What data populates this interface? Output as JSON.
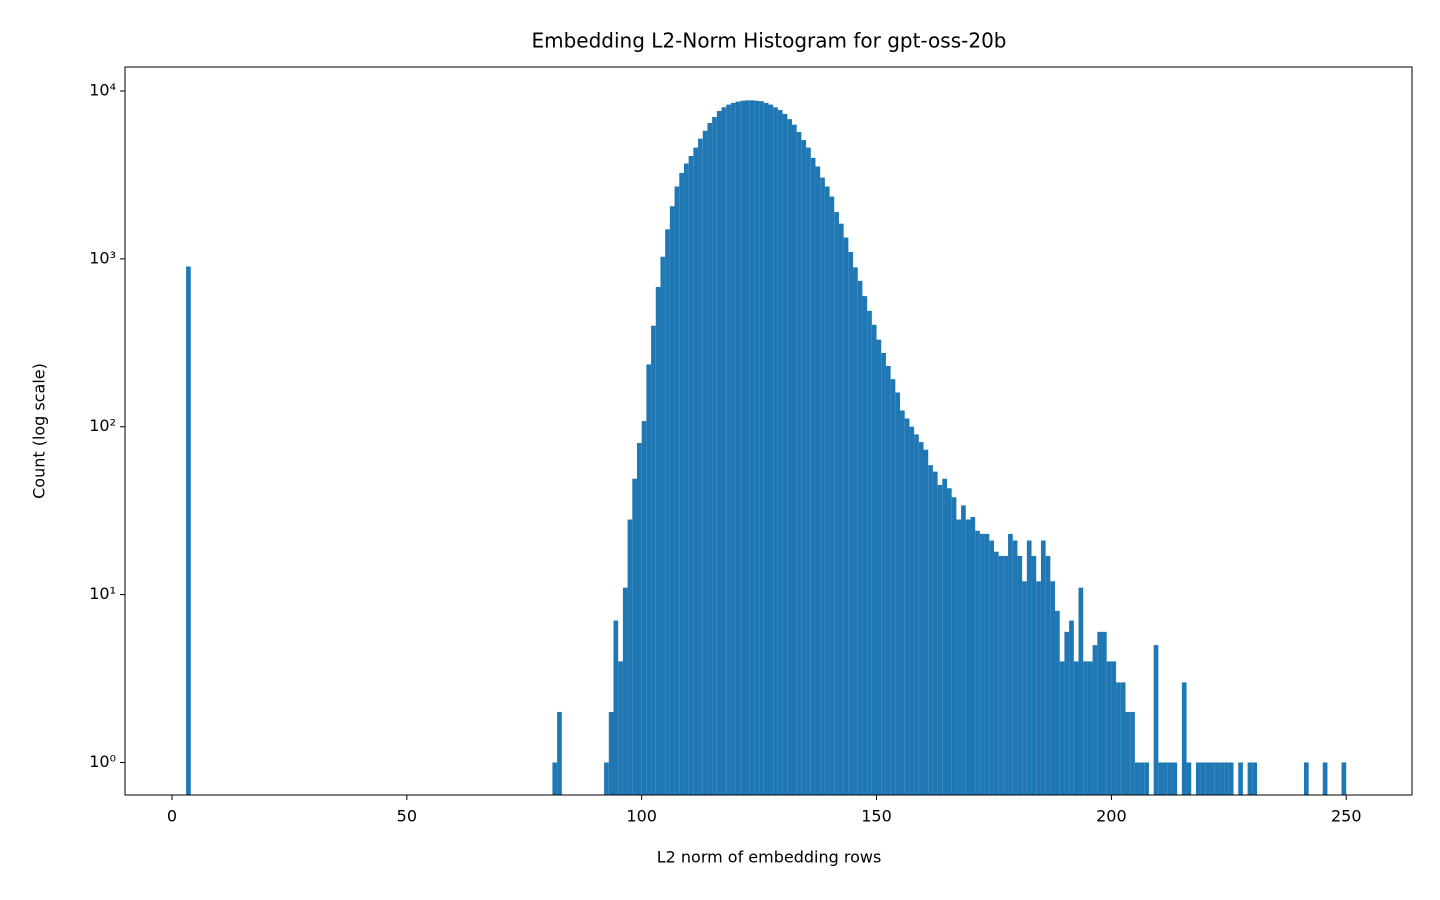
{
  "chart_data": {
    "type": "histogram",
    "title": "Embedding L2-Norm Histogram for gpt-oss-20b",
    "xlabel": "L2 norm of embedding rows",
    "ylabel": "Count (log scale)",
    "color": "#1f77b4",
    "log_y": true,
    "xlim": [
      -10,
      264
    ],
    "ylim": [
      0.64,
      13900
    ],
    "xticks": [
      0,
      50,
      100,
      150,
      200,
      250
    ],
    "yticks": [
      {
        "value": 1,
        "label": "10⁰"
      },
      {
        "value": 10,
        "label": "10¹"
      },
      {
        "value": 100,
        "label": "10²"
      },
      {
        "value": 1000,
        "label": "10³"
      },
      {
        "value": 10000,
        "label": "10⁴"
      }
    ],
    "bins": [
      3,
      4,
      5,
      6,
      7,
      8,
      9,
      10,
      11,
      12,
      13,
      14,
      15,
      16,
      17,
      18,
      19,
      20,
      21,
      22,
      23,
      24,
      25,
      26,
      27,
      28,
      29,
      30,
      31,
      32,
      33,
      34,
      35,
      36,
      37,
      38,
      39,
      40,
      41,
      42,
      43,
      44,
      45,
      46,
      47,
      48,
      49,
      50,
      51,
      52,
      53,
      54,
      55,
      56,
      57,
      58,
      59,
      60,
      61,
      62,
      63,
      64,
      65,
      66,
      67,
      68,
      69,
      70,
      71,
      72,
      73,
      74,
      75,
      76,
      77,
      78,
      79,
      80,
      81,
      82,
      83,
      84,
      85,
      86,
      87,
      88,
      89,
      90,
      91,
      92,
      93,
      94,
      95,
      96,
      97,
      98,
      99,
      100,
      101,
      102,
      103,
      104,
      105,
      106,
      107,
      108,
      109,
      110,
      111,
      112,
      113,
      114,
      115,
      116,
      117,
      118,
      119,
      120,
      121,
      122,
      123,
      124,
      125,
      126,
      127,
      128,
      129,
      130,
      131,
      132,
      133,
      134,
      135,
      136,
      137,
      138,
      139,
      140,
      141,
      142,
      143,
      144,
      145,
      146,
      147,
      148,
      149,
      150,
      151,
      152,
      153,
      154,
      155,
      156,
      157,
      158,
      159,
      160,
      161,
      162,
      163,
      164,
      165,
      166,
      167,
      168,
      169,
      170,
      171,
      172,
      173,
      174,
      175,
      176,
      177,
      178,
      179,
      180,
      181,
      182,
      183,
      184,
      185,
      186,
      187,
      188,
      189,
      190,
      191,
      192,
      193,
      194,
      195,
      196,
      197,
      198,
      199,
      200,
      201,
      202,
      203,
      204,
      205,
      206,
      207,
      208,
      209,
      210,
      211,
      212,
      213,
      214,
      215,
      216,
      217,
      218,
      219,
      220,
      221,
      222,
      223,
      224,
      225,
      226,
      227,
      228,
      229,
      230,
      231,
      232,
      233,
      234,
      235,
      236,
      237,
      238,
      239,
      240,
      241,
      242,
      243,
      244,
      245,
      246,
      247,
      248,
      249,
      250,
      251,
      252
    ],
    "counts": [
      900,
      0,
      0,
      0,
      0,
      0,
      0,
      0,
      0,
      0,
      0,
      0,
      0,
      0,
      0,
      0,
      0,
      0,
      0,
      0,
      0,
      0,
      0,
      0,
      0,
      0,
      0,
      0,
      0,
      0,
      0,
      0,
      0,
      0,
      0,
      0,
      0,
      0,
      0,
      0,
      0,
      0,
      0,
      0,
      0,
      0,
      0,
      0,
      0,
      0,
      0,
      0,
      0,
      0,
      0,
      0,
      0,
      0,
      0,
      0,
      0,
      0,
      0,
      0,
      0,
      0,
      0,
      0,
      0,
      0,
      0,
      0,
      0,
      0,
      0,
      0,
      0,
      0,
      1,
      2,
      0,
      0,
      0,
      0,
      0,
      0,
      0,
      0,
      0,
      1,
      2,
      7,
      4,
      11,
      28,
      49,
      80,
      108,
      235,
      400,
      680,
      1030,
      1500,
      2060,
      2700,
      3250,
      3700,
      4100,
      4600,
      5200,
      5800,
      6450,
      7000,
      7600,
      8000,
      8300,
      8500,
      8650,
      8750,
      8800,
      8800,
      8750,
      8700,
      8500,
      8300,
      8000,
      7700,
      7300,
      6800,
      6300,
      5700,
      5100,
      4600,
      4000,
      3550,
      3050,
      2700,
      2350,
      1900,
      1620,
      1340,
      1100,
      890,
      740,
      600,
      490,
      405,
      330,
      275,
      230,
      192,
      160,
      125,
      112,
      100,
      90,
      81,
      73,
      59,
      54,
      45,
      49,
      43,
      38,
      28,
      34,
      28,
      29,
      24,
      23,
      23,
      21,
      18,
      17,
      17,
      23,
      21,
      17,
      12,
      21,
      17,
      12,
      21,
      17,
      12,
      8,
      4,
      6,
      7,
      4,
      11,
      4,
      4,
      5,
      6,
      6,
      4,
      4,
      3,
      3,
      2,
      2,
      1,
      1,
      1,
      0,
      5,
      1,
      1,
      1,
      1,
      0,
      3,
      1,
      0,
      1,
      1,
      1,
      1,
      1,
      1,
      1,
      1,
      0,
      1,
      0,
      1,
      1,
      0,
      0,
      0,
      0,
      0,
      0,
      0,
      0,
      0,
      0,
      1,
      0,
      0,
      0,
      1,
      0,
      0,
      0,
      1,
      0,
      0
    ]
  }
}
